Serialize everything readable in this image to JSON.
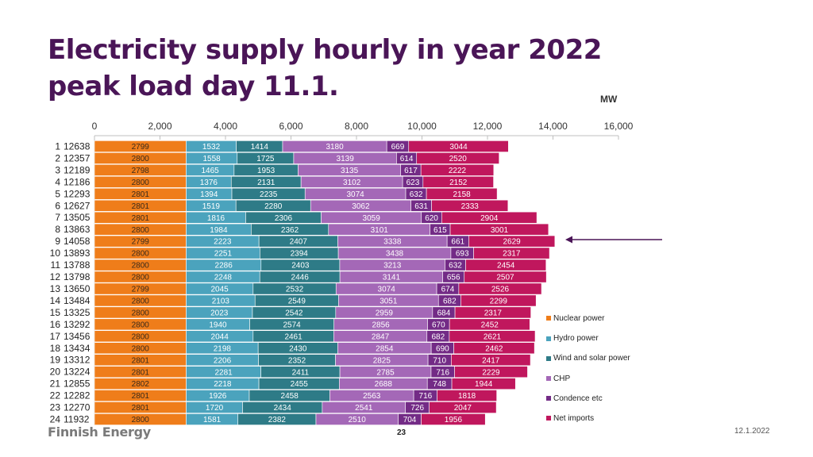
{
  "title_line1": "Electricity supply hourly in year 2022",
  "title_line2": "peak load day 11.1.",
  "unit": "MW",
  "footer": {
    "logo": "Finnish Energy",
    "page": "23",
    "date": "12.1.2022"
  },
  "colors": {
    "title": "#4a1557",
    "arrow": "#4a1557"
  },
  "chart_data": {
    "type": "bar",
    "orientation": "horizontal",
    "stacked": true,
    "title": "Electricity supply hourly in year 2022 peak load day 11.1.",
    "xlabel": "MW",
    "xlim": [
      0,
      16000
    ],
    "xticks": [
      0,
      2000,
      4000,
      6000,
      8000,
      10000,
      12000,
      14000,
      16000
    ],
    "xtick_labels": [
      "0",
      "2,000",
      "4,000",
      "6,000",
      "8,000",
      "10,000",
      "12,000",
      "14,000",
      "16,000"
    ],
    "legend_position": "right",
    "highlight_hour": "9",
    "categories": [
      "1",
      "2",
      "3",
      "4",
      "5",
      "6",
      "7",
      "8",
      "9",
      "10",
      "11",
      "12",
      "13",
      "14",
      "15",
      "16",
      "17",
      "18",
      "19",
      "20",
      "21",
      "22",
      "23",
      "24"
    ],
    "totals": [
      "12638",
      "12357",
      "12189",
      "12186",
      "12293",
      "12627",
      "13505",
      "13863",
      "14058",
      "13893",
      "13788",
      "13798",
      "13650",
      "13484",
      "13325",
      "13292",
      "13456",
      "13434",
      "13312",
      "13224",
      "12855",
      "12282",
      "12270",
      "11932"
    ],
    "series": [
      {
        "name": "Nuclear power",
        "color": "#ef7d1a",
        "values": [
          2799,
          2800,
          2798,
          2800,
          2801,
          2801,
          2801,
          2800,
          2799,
          2800,
          2800,
          2800,
          2799,
          2800,
          2800,
          2800,
          2800,
          2800,
          2801,
          2801,
          2802,
          2801,
          2801,
          2800
        ]
      },
      {
        "name": "Hydro power",
        "color": "#4ba3bd",
        "values": [
          1532,
          1558,
          1465,
          1376,
          1394,
          1519,
          1816,
          1984,
          2223,
          2251,
          2286,
          2248,
          2045,
          2103,
          2023,
          1940,
          2044,
          2198,
          2206,
          2281,
          2218,
          1926,
          1720,
          1581
        ]
      },
      {
        "name": "Wind and solar power",
        "color": "#2e7b87",
        "values": [
          1414,
          1725,
          1953,
          2131,
          2235,
          2280,
          2306,
          2362,
          2407,
          2394,
          2403,
          2446,
          2532,
          2549,
          2542,
          2574,
          2461,
          2430,
          2352,
          2411,
          2455,
          2458,
          2434,
          2382
        ]
      },
      {
        "name": "CHP",
        "color": "#a468b7",
        "values": [
          3180,
          3139,
          3135,
          3102,
          3074,
          3062,
          3059,
          3101,
          3338,
          3438,
          3213,
          3141,
          3074,
          3051,
          2959,
          2856,
          2847,
          2854,
          2825,
          2785,
          2688,
          2563,
          2541,
          2510
        ]
      },
      {
        "name": "Condence etc",
        "color": "#732b86",
        "values": [
          669,
          614,
          617,
          623,
          632,
          631,
          620,
          615,
          661,
          693,
          632,
          656,
          674,
          682,
          684,
          670,
          682,
          690,
          710,
          716,
          748,
          716,
          726,
          704
        ]
      },
      {
        "name": "Net imports",
        "color": "#c0175d",
        "values": [
          3044,
          2520,
          2222,
          2152,
          2158,
          2333,
          2904,
          3001,
          2629,
          2317,
          2454,
          2507,
          2526,
          2299,
          2317,
          2452,
          2621,
          2462,
          2417,
          2229,
          1944,
          1818,
          2047,
          1956
        ]
      }
    ]
  }
}
